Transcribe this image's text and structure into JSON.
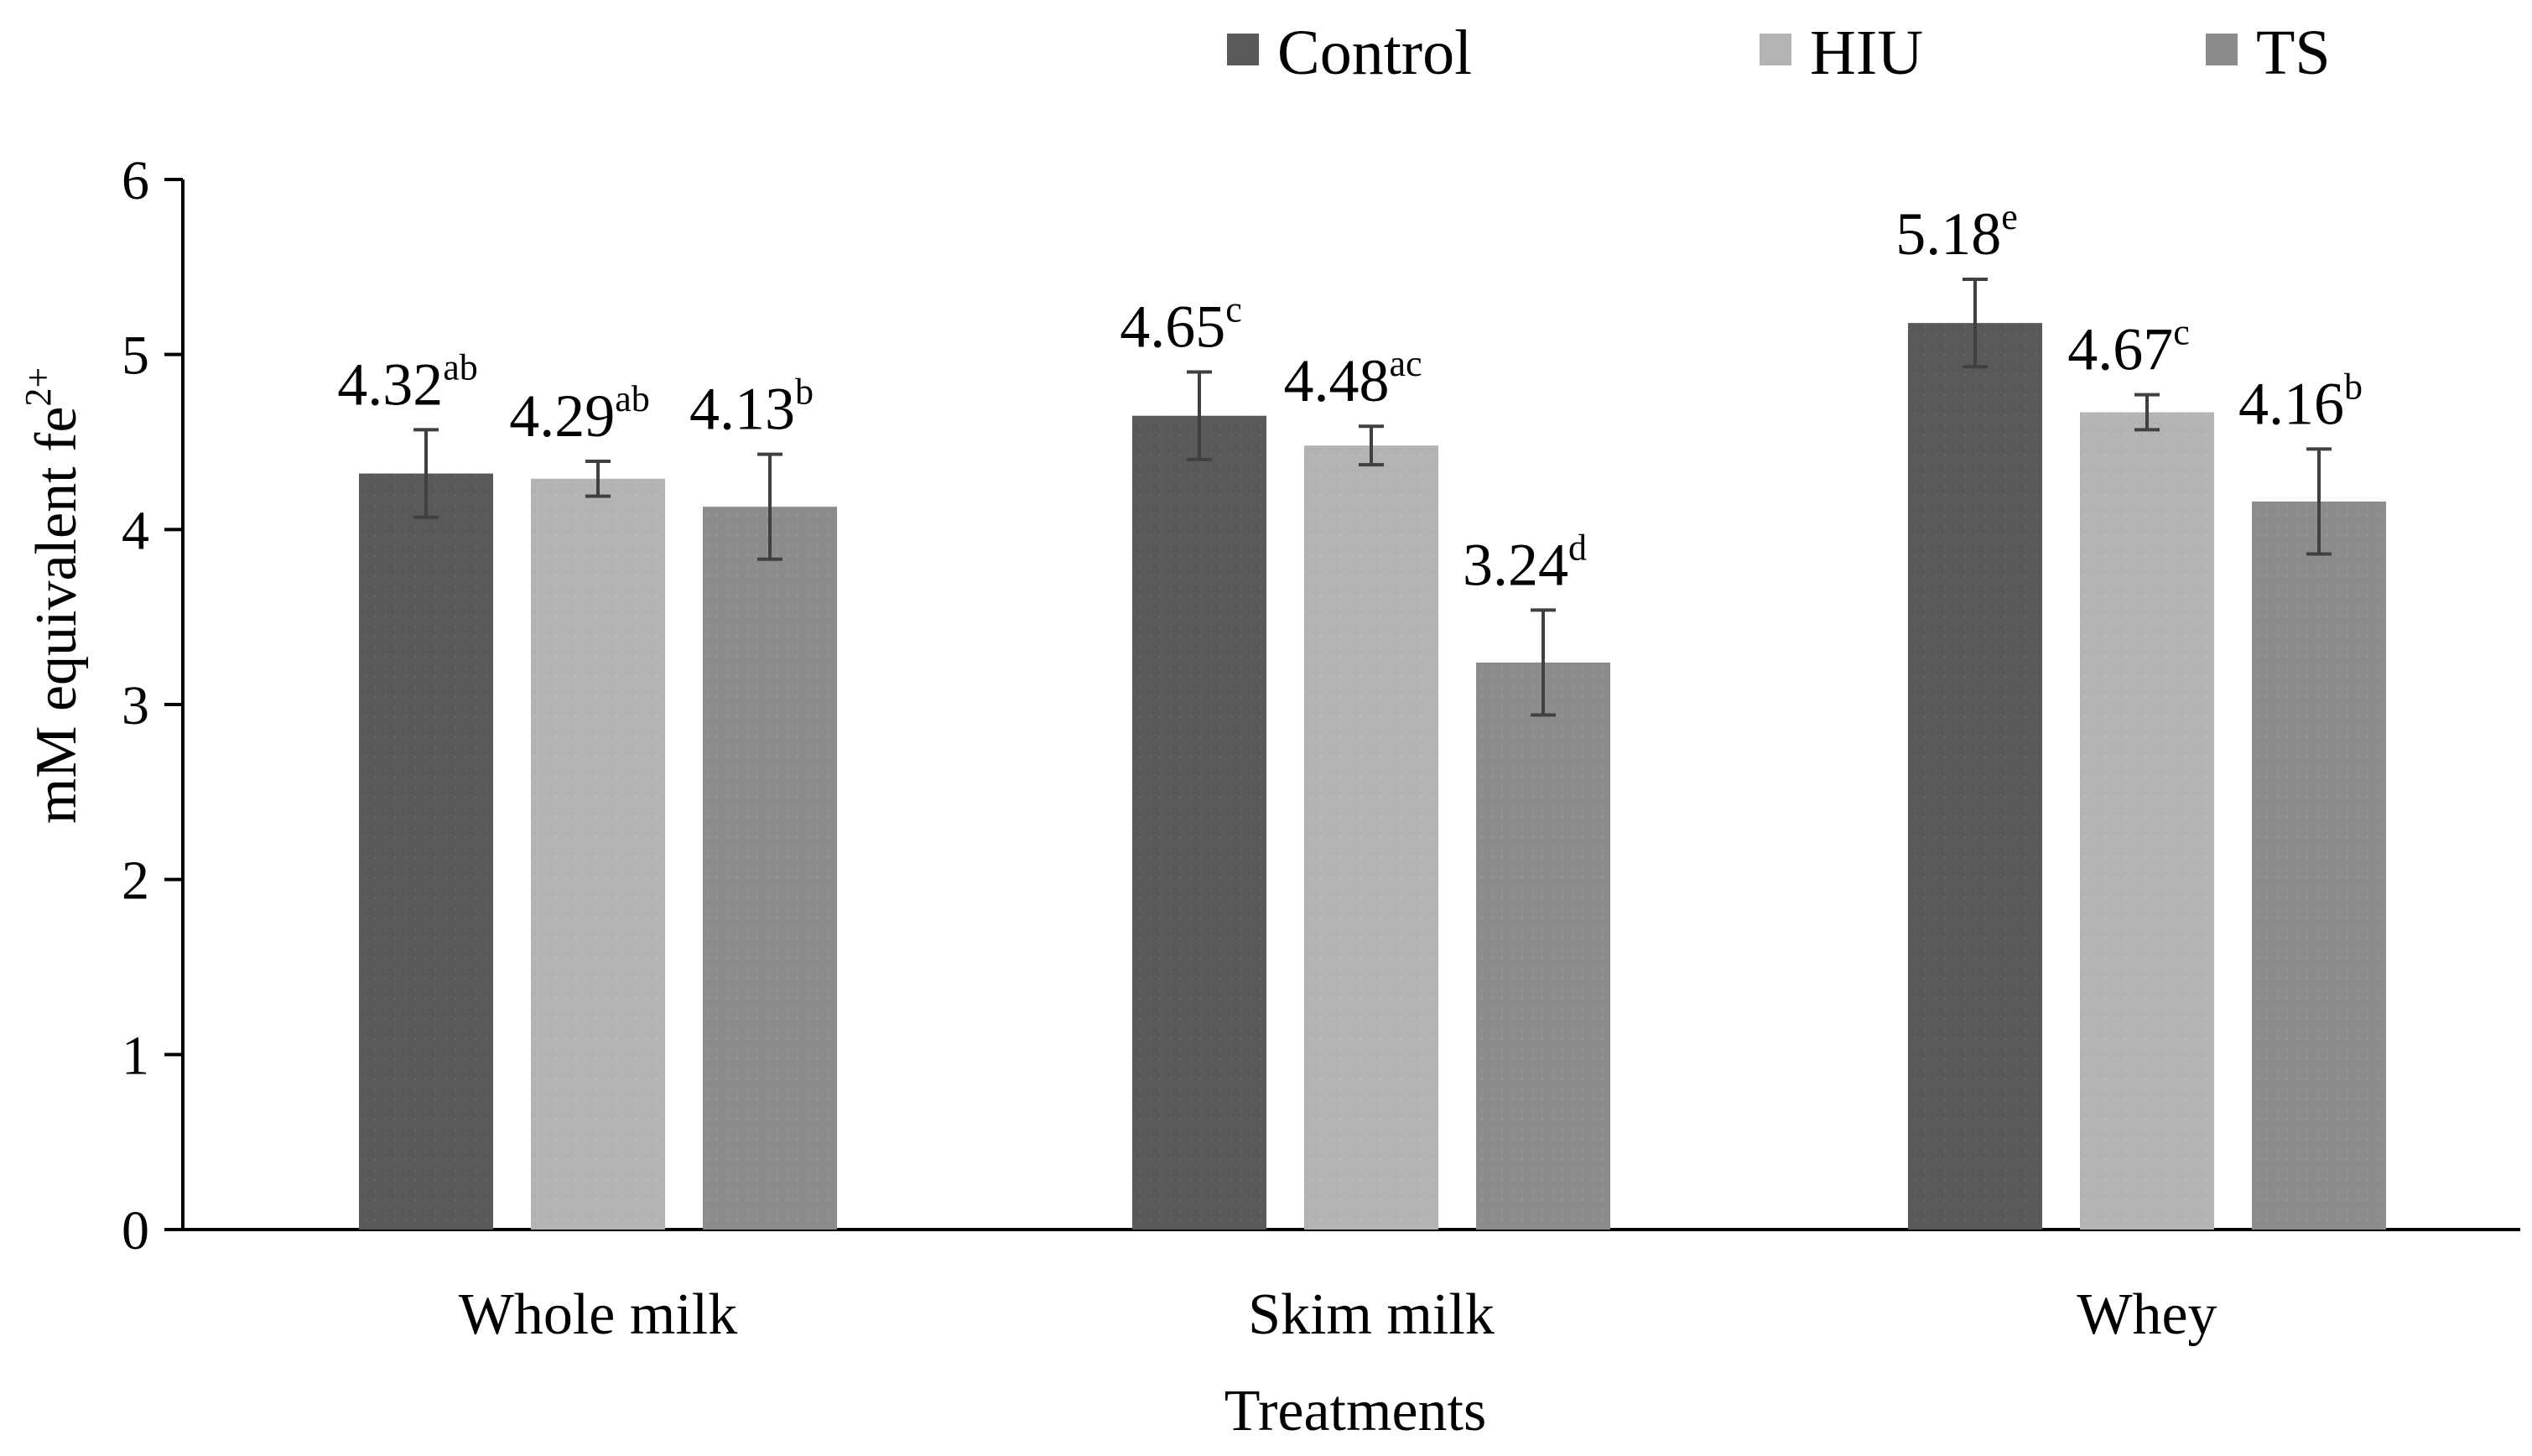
{
  "chart_data": {
    "type": "bar",
    "title": "",
    "xlabel": "Treatments",
    "ylabel": "mM equivalent fe",
    "ylabel_superscript": "2+",
    "ylim": [
      0,
      6
    ],
    "yticks": [
      0,
      1,
      2,
      3,
      4,
      5,
      6
    ],
    "legend_position": "top-right",
    "categories": [
      "Whole milk",
      "Skim milk",
      "Whey"
    ],
    "series": [
      {
        "name": "Control",
        "color": "#595959",
        "values": [
          4.32,
          4.65,
          5.18
        ],
        "errors": [
          0.25,
          0.25,
          0.25
        ],
        "value_labels": [
          "4.32",
          "4.65",
          "5.18"
        ],
        "letters": [
          "ab",
          "c",
          "e"
        ]
      },
      {
        "name": "HIU",
        "color": "#b3b3b3",
        "values": [
          4.29,
          4.48,
          4.67
        ],
        "errors": [
          0.1,
          0.11,
          0.1
        ],
        "value_labels": [
          "4.29",
          "4.48",
          "4.67"
        ],
        "letters": [
          "ab",
          "ac",
          "c"
        ]
      },
      {
        "name": "TS",
        "color": "#8c8c8c",
        "values": [
          4.13,
          3.24,
          4.16
        ],
        "errors": [
          0.3,
          0.3,
          0.3
        ],
        "value_labels": [
          "4.13",
          "3.24",
          "4.16"
        ],
        "letters": [
          "b",
          "d",
          "b"
        ]
      }
    ]
  }
}
